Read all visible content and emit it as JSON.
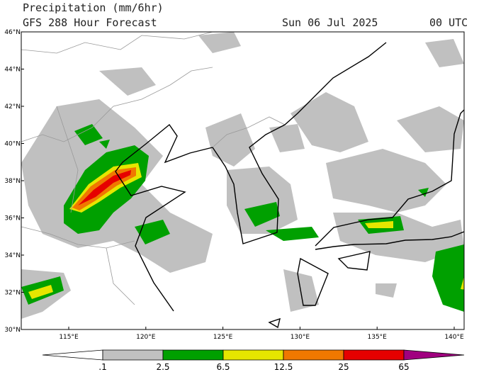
{
  "header": {
    "title": "Precipitation (mm/6hr)",
    "subtitle": "GFS 288 Hour Forecast",
    "date": "Sun 06 Jul 2025",
    "time": "00 UTC"
  },
  "map": {
    "lat_labels": [
      "46°N",
      "44°N",
      "42°N",
      "40°N",
      "38°N",
      "36°N",
      "34°N",
      "32°N",
      "30°N"
    ],
    "lon_labels": [
      "115°E",
      "120°E",
      "125°E",
      "130°E",
      "135°E",
      "140°E"
    ]
  },
  "legend": {
    "levels": [
      ".1",
      "2.5",
      "6.5",
      "12.5",
      "25",
      "65"
    ],
    "colors": [
      "#ffffff",
      "#c0c0c0",
      "#00a000",
      "#e6e600",
      "#f07800",
      "#e60000",
      "#a0007f"
    ]
  }
}
